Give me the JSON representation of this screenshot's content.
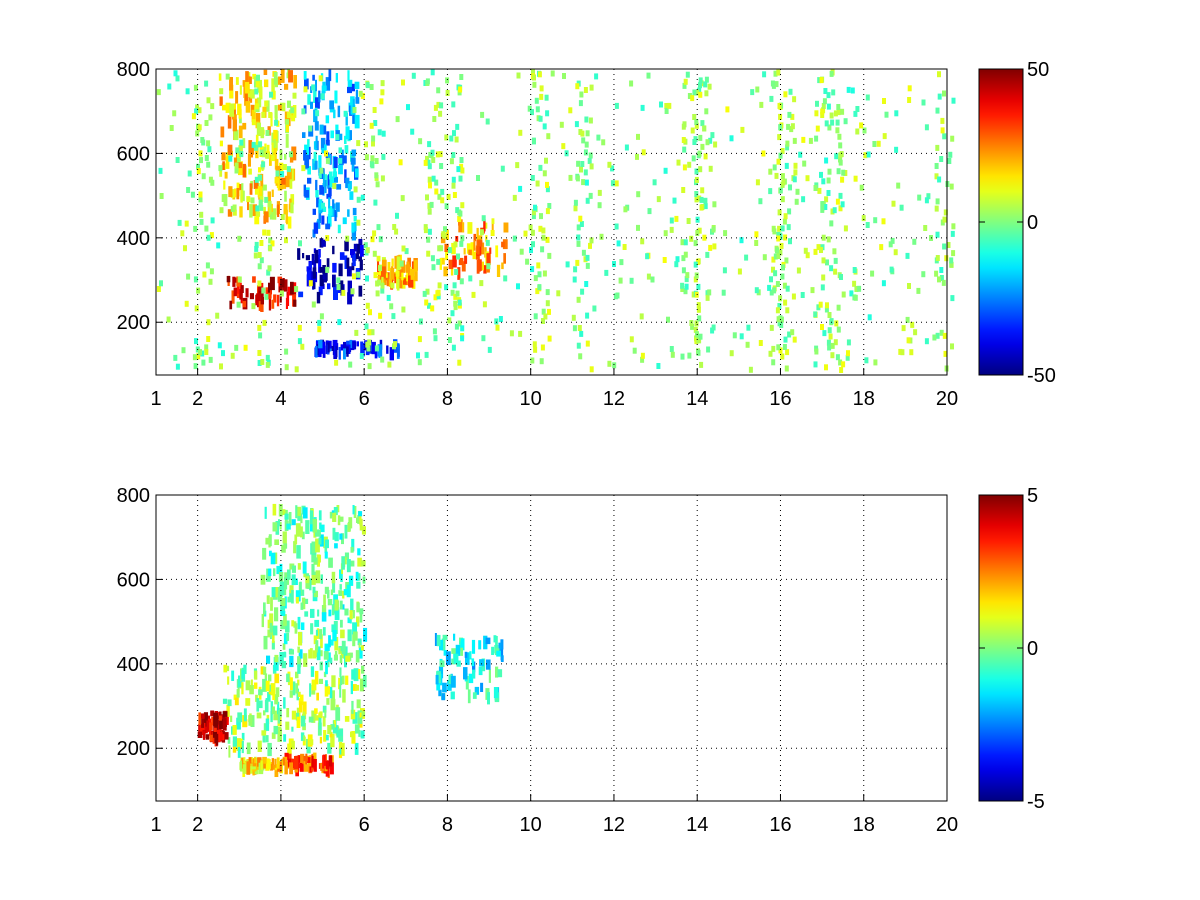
{
  "chart_data": [
    {
      "type": "heatmap",
      "title": "",
      "xlabel": "",
      "ylabel": "",
      "xlim": [
        1,
        20
      ],
      "ylim": [
        75,
        800
      ],
      "x_ticks": [
        1,
        2,
        4,
        6,
        8,
        10,
        12,
        14,
        16,
        18,
        20
      ],
      "x_tick_labels": [
        "1",
        "2",
        "4",
        "6",
        "8",
        "10",
        "12",
        "14",
        "16",
        "18",
        "20"
      ],
      "y_ticks": [
        200,
        400,
        600,
        800
      ],
      "y_tick_labels": [
        "200",
        "400",
        "600",
        "800"
      ],
      "grid": "dotted",
      "colormap": "jet",
      "colorbar": {
        "min": -50,
        "max": 50,
        "tick_labels": [
          "-50",
          "0",
          "50"
        ]
      },
      "features": [
        {
          "x": [
            2.6,
            4.3
          ],
          "y": [
            250,
            310
          ],
          "value": 40
        },
        {
          "x": [
            4.3,
            5.9
          ],
          "y": [
            270,
            400
          ],
          "value": -45
        },
        {
          "x": [
            4.5,
            5.8
          ],
          "y": [
            420,
            800
          ],
          "value": -20
        },
        {
          "x": [
            2.5,
            4.3
          ],
          "y": [
            450,
            800
          ],
          "value": 15
        },
        {
          "x": [
            6.3,
            7.2
          ],
          "y": [
            300,
            360
          ],
          "value": 20
        },
        {
          "x": [
            7.8,
            9.4
          ],
          "y": [
            330,
            450
          ],
          "value": 22
        },
        {
          "x": [
            4.8,
            6.8
          ],
          "y": [
            140,
            160
          ],
          "value": -35
        }
      ]
    },
    {
      "type": "heatmap",
      "title": "",
      "xlabel": "",
      "ylabel": "",
      "xlim": [
        1,
        20
      ],
      "ylim": [
        75,
        800
      ],
      "x_ticks": [
        1,
        2,
        4,
        6,
        8,
        10,
        12,
        14,
        16,
        18,
        20
      ],
      "x_tick_labels": [
        "1",
        "2",
        "4",
        "6",
        "8",
        "10",
        "12",
        "14",
        "16",
        "18",
        "20"
      ],
      "y_ticks": [
        200,
        400,
        600,
        800
      ],
      "y_tick_labels": [
        "200",
        "400",
        "600",
        "800"
      ],
      "grid": "dotted",
      "colormap": "jet",
      "colorbar": {
        "min": -5,
        "max": 5,
        "tick_labels": [
          "-5",
          "0",
          "5"
        ]
      },
      "features": [
        {
          "x": [
            2.6,
            6.0
          ],
          "y": [
            200,
            400
          ],
          "value": 0.3
        },
        {
          "x": [
            3.5,
            6.0
          ],
          "y": [
            400,
            780
          ],
          "value": -0.3
        },
        {
          "x": [
            2.0,
            2.7
          ],
          "y": [
            230,
            290
          ],
          "value": 4
        },
        {
          "x": [
            3.0,
            4.0
          ],
          "y": [
            160,
            180
          ],
          "value": 1.5
        },
        {
          "x": [
            4.0,
            5.2
          ],
          "y": [
            160,
            190
          ],
          "value": 3
        },
        {
          "x": [
            7.7,
            9.3
          ],
          "y": [
            330,
            480
          ],
          "value": -1.2
        }
      ]
    }
  ]
}
